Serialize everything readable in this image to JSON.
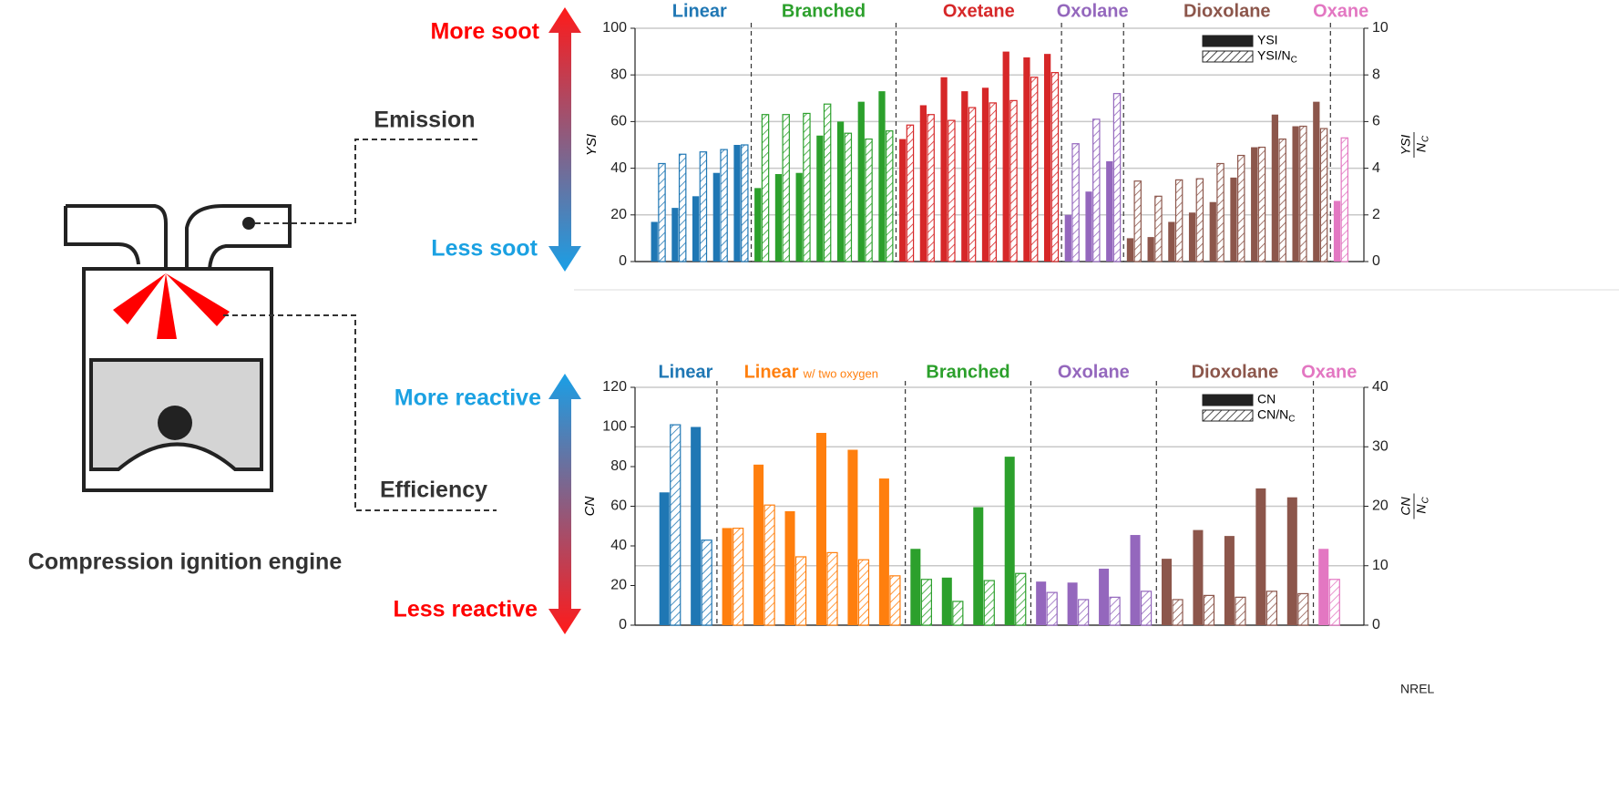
{
  "labels": {
    "emission": "Emission",
    "efficiency": "Efficiency",
    "engine": "Compression ignition engine",
    "more_soot": "More soot",
    "less_soot": "Less soot",
    "more_reactive": "More reactive",
    "less_reactive": "Less reactive",
    "credit": "NREL"
  },
  "chart_data": [
    {
      "type": "bar",
      "y_label": "YSI",
      "y2_label": {
        "num": "YSI",
        "den": "N",
        "sub": "C"
      },
      "ylim": [
        0,
        100
      ],
      "yticks": [
        0,
        20,
        40,
        60,
        80,
        100
      ],
      "y2lim": [
        0,
        10
      ],
      "y2ticks": [
        0,
        2,
        4,
        6,
        8,
        10
      ],
      "grid": "y",
      "legend": [
        {
          "name": "YSI"
        },
        {
          "name": "YSI/N",
          "sub": "C",
          "axis": "y2"
        }
      ],
      "groups": [
        {
          "name": "Linear",
          "color": "#1f77b4",
          "values": [
            17,
            23,
            28,
            38,
            50
          ],
          "values2": [
            4.2,
            4.6,
            4.7,
            4.8,
            5.0
          ]
        },
        {
          "name": "Branched",
          "color": "#2ca02c",
          "values": [
            31.5,
            37.5,
            38,
            54,
            60,
            68.5,
            73
          ],
          "values2": [
            6.3,
            6.3,
            6.35,
            6.75,
            5.5,
            5.25,
            5.6
          ]
        },
        {
          "name": "Oxetane",
          "color": "#d62728",
          "values": [
            52.5,
            67,
            79,
            73,
            74.5,
            90,
            87.5,
            89
          ],
          "values2": [
            5.85,
            6.3,
            6.05,
            6.6,
            6.8,
            6.9,
            7.9,
            8.1
          ]
        },
        {
          "name": "Oxolane",
          "color": "#9467bd",
          "values": [
            20,
            30,
            43
          ],
          "values2": [
            5.05,
            6.1,
            7.2
          ]
        },
        {
          "name": "Dioxolane",
          "color": "#8c564b",
          "values": [
            10,
            10.5,
            17,
            21,
            25.5,
            36,
            49,
            63,
            58,
            68.5
          ],
          "values2": [
            3.45,
            2.8,
            3.5,
            3.55,
            4.2,
            4.55,
            4.9,
            5.25,
            5.8,
            5.7
          ]
        },
        {
          "name": "Oxane",
          "color": "#e377c2",
          "values": [
            26
          ],
          "values2": [
            5.3
          ]
        }
      ]
    },
    {
      "type": "bar",
      "y_label": "CN",
      "y2_label": {
        "num": "CN",
        "den": "N",
        "sub": "C"
      },
      "ylim": [
        0,
        120
      ],
      "yticks": [
        0,
        20,
        40,
        60,
        80,
        100,
        120
      ],
      "y2lim": [
        0,
        40
      ],
      "y2ticks": [
        0,
        10,
        20,
        30,
        40
      ],
      "grid": "y2",
      "legend": [
        {
          "name": "CN"
        },
        {
          "name": "CN/N",
          "sub": "C",
          "axis": "y2"
        }
      ],
      "groups": [
        {
          "name": "Linear",
          "color": "#1f77b4",
          "values": [
            67,
            100
          ],
          "values2": [
            33.7,
            14.3
          ]
        },
        {
          "name": "Linear",
          "note": "w/ two oxygen",
          "color": "#ff7f0e",
          "values": [
            49,
            81,
            57.5,
            97,
            88.5,
            74
          ],
          "values2": [
            16.3,
            20.2,
            11.5,
            12.2,
            11,
            8.3
          ]
        },
        {
          "name": "Branched",
          "color": "#2ca02c",
          "values": [
            38.5,
            24,
            59.5,
            85
          ],
          "values2": [
            7.7,
            4,
            7.5,
            8.7
          ]
        },
        {
          "name": "Oxolane",
          "color": "#9467bd",
          "values": [
            22,
            21.5,
            28.5,
            45.5
          ],
          "values2": [
            5.5,
            4.3,
            4.7,
            5.7
          ]
        },
        {
          "name": "Dioxolane",
          "color": "#8c564b",
          "values": [
            33.5,
            48,
            45,
            69,
            64.5
          ],
          "values2": [
            4.3,
            5,
            4.7,
            5.7,
            5.3
          ]
        },
        {
          "name": "Oxane",
          "color": "#e377c2",
          "values": [
            38.5
          ],
          "values2": [
            7.7
          ]
        }
      ]
    }
  ]
}
